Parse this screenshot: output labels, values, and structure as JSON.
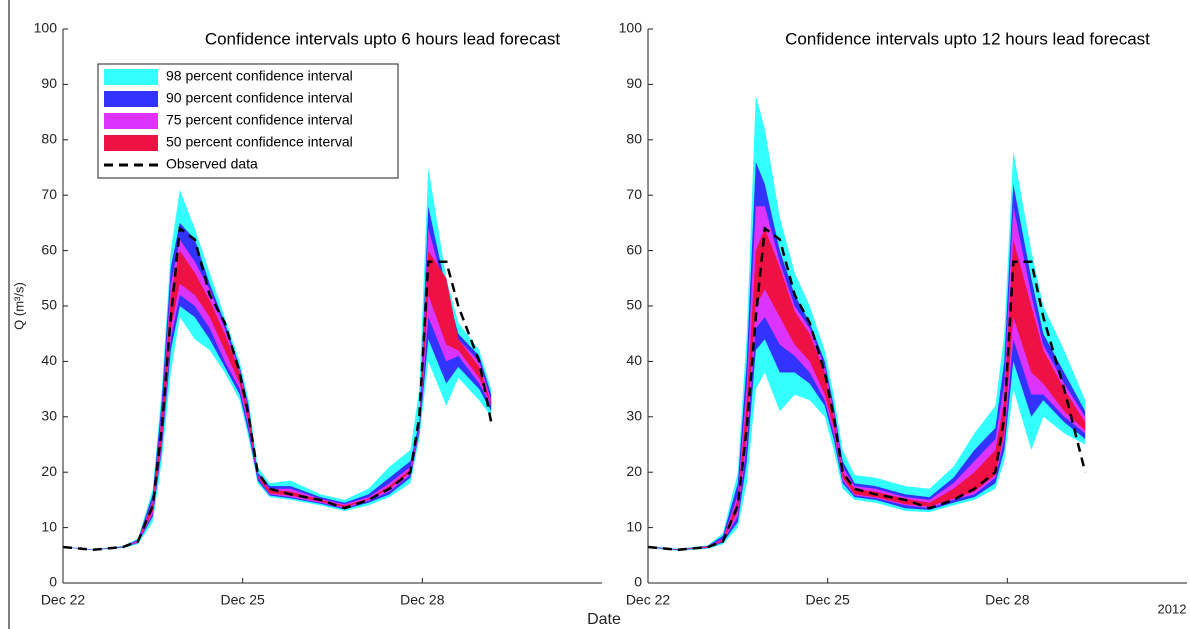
{
  "xlabel": "Date",
  "chart_data": [
    {
      "type": "band",
      "title": "Confidence intervals upto 6 hours lead forecast",
      "ylabel": "Q (m³/s)",
      "x": [
        0,
        0.5,
        1,
        1.25,
        1.5,
        1.65,
        1.8,
        1.95,
        2.2,
        2.45,
        2.7,
        2.95,
        3.1,
        3.25,
        3.45,
        3.8,
        4.3,
        4.7,
        5.1,
        5.45,
        5.8,
        5.95,
        6.1,
        6.4,
        6.6,
        6.95,
        7.15
      ],
      "xlim": [
        0,
        9
      ],
      "ylim": [
        0,
        100
      ],
      "xticks": [
        {
          "value": 0,
          "label": "Dec 22"
        },
        {
          "value": 3,
          "label": "Dec 25"
        },
        {
          "value": 6,
          "label": "Dec 28"
        }
      ],
      "yticks": [
        0,
        10,
        20,
        30,
        40,
        50,
        60,
        70,
        80,
        90,
        100
      ],
      "legend": "upper-left",
      "bands": [
        {
          "name": "98 percent confidence interval",
          "color": "#33ffff",
          "upper": [
            6.6,
            6.1,
            6.7,
            8,
            17,
            35,
            60,
            71,
            64,
            56,
            48,
            40,
            33,
            21,
            18,
            18.5,
            16,
            15,
            17,
            21,
            24,
            35,
            75,
            55,
            47,
            42,
            35
          ],
          "lower": [
            6.4,
            5.9,
            6.3,
            7,
            11,
            22,
            38,
            48,
            44,
            42,
            38,
            33,
            26,
            18,
            15.5,
            15,
            14,
            13,
            14,
            15.5,
            18,
            26,
            40,
            32,
            37,
            33,
            30
          ]
        },
        {
          "name": "90 percent confidence interval",
          "color": "#3333ff",
          "upper": [
            6.55,
            6.05,
            6.6,
            7.8,
            16,
            33,
            57,
            65,
            62,
            54,
            47,
            39,
            32,
            20,
            17.5,
            17.5,
            15.5,
            14.5,
            16,
            19,
            22,
            29,
            68,
            53,
            45,
            41,
            34
          ],
          "lower": [
            6.45,
            5.95,
            6.4,
            7.2,
            12,
            24,
            42,
            50,
            48,
            44,
            39,
            34,
            27,
            18.5,
            15.8,
            15.3,
            14.3,
            13.3,
            14.5,
            16,
            19,
            27,
            44,
            36,
            39,
            35,
            31
          ]
        },
        {
          "name": "75 percent confidence interval",
          "color": "#dd33ff",
          "upper": [
            6.52,
            6.02,
            6.55,
            7.6,
            15,
            31,
            54,
            62,
            58,
            53,
            46,
            38.5,
            31,
            19.5,
            17,
            17,
            15.2,
            14.2,
            15.5,
            18,
            21,
            28,
            64,
            52,
            44,
            40,
            33
          ],
          "lower": [
            6.48,
            5.98,
            6.45,
            7.3,
            12.5,
            25,
            44,
            52,
            50,
            46,
            40,
            35,
            28,
            19,
            16,
            15.5,
            14.5,
            13.5,
            14.8,
            16.5,
            19.5,
            27.5,
            48,
            40,
            41,
            36,
            32
          ]
        },
        {
          "name": "50 percent confidence interval",
          "color": "#ee1144",
          "upper": [
            6.51,
            6.01,
            6.52,
            7.5,
            14.5,
            30,
            52,
            60,
            56,
            51,
            45,
            38,
            30.5,
            19.3,
            16.8,
            16.5,
            15,
            14,
            15.2,
            17.5,
            20.5,
            27.8,
            60,
            55,
            44,
            39,
            32.5
          ],
          "lower": [
            6.49,
            5.99,
            6.48,
            7.4,
            13,
            26,
            46,
            54,
            52,
            48,
            42,
            36,
            29,
            19.1,
            16.2,
            15.8,
            14.7,
            13.7,
            15,
            17,
            20,
            27.6,
            52,
            43,
            42,
            37,
            32.2
          ]
        }
      ],
      "series": [
        {
          "name": "Observed data",
          "color": "#000000",
          "values": [
            6.5,
            6,
            6.5,
            7.5,
            14,
            28,
            48,
            64,
            62,
            52,
            47,
            38,
            30,
            20,
            17,
            16,
            15,
            13.5,
            15,
            17,
            20,
            30,
            58,
            58,
            50,
            40,
            29
          ]
        }
      ]
    },
    {
      "type": "band",
      "title": "Confidence intervals upto 12 hours lead forecast",
      "annotation": "2012",
      "x": [
        0,
        0.5,
        1,
        1.25,
        1.5,
        1.65,
        1.8,
        1.95,
        2.2,
        2.45,
        2.7,
        2.95,
        3.1,
        3.25,
        3.45,
        3.8,
        4.3,
        4.7,
        5.1,
        5.45,
        5.8,
        5.95,
        6.1,
        6.4,
        6.6,
        6.95,
        7.3
      ],
      "xlim": [
        0,
        9
      ],
      "ylim": [
        0,
        100
      ],
      "xticks": [
        {
          "value": 0,
          "label": "Dec 22"
        },
        {
          "value": 3,
          "label": "Dec 25"
        },
        {
          "value": 6,
          "label": "Dec 28"
        }
      ],
      "yticks": [
        0,
        10,
        20,
        30,
        40,
        50,
        60,
        70,
        80,
        90,
        100
      ],
      "bands": [
        {
          "color": "#33ffff",
          "upper": [
            6.7,
            6.2,
            6.8,
            9,
            20,
            45,
            88,
            82,
            66,
            56,
            50,
            42,
            34,
            24,
            19.5,
            19,
            17.5,
            17,
            21,
            27,
            32,
            45,
            78,
            60,
            50,
            42,
            33
          ],
          "lower": [
            6.3,
            5.8,
            6.2,
            7,
            10,
            18,
            35,
            38,
            31,
            34,
            33,
            30,
            24,
            17,
            15,
            14.5,
            13,
            12.8,
            14,
            15,
            17,
            22,
            35,
            24,
            30,
            27,
            25
          ]
        },
        {
          "color": "#3333ff",
          "upper": [
            6.6,
            6.1,
            6.7,
            8.5,
            18,
            40,
            76,
            72,
            60,
            52,
            47,
            40,
            32,
            22,
            18,
            17.5,
            16,
            15.5,
            19,
            24,
            28,
            40,
            72,
            55,
            45,
            38,
            31
          ],
          "lower": [
            6.4,
            5.9,
            6.3,
            7.3,
            11,
            22,
            42,
            44,
            38,
            38,
            36,
            32,
            26,
            18,
            15.5,
            15,
            13.5,
            13.2,
            14.5,
            15.5,
            18,
            24,
            40,
            30,
            33,
            29,
            26
          ]
        },
        {
          "color": "#dd33ff",
          "upper": [
            6.55,
            6.05,
            6.65,
            8,
            16,
            36,
            68,
            68,
            58,
            50,
            46,
            39,
            31,
            21,
            17.5,
            17,
            15.5,
            15,
            18,
            22,
            26,
            36,
            68,
            52,
            43,
            36,
            30
          ],
          "lower": [
            6.45,
            5.95,
            6.35,
            7.5,
            12,
            25,
            46,
            48,
            43,
            41,
            38,
            33,
            27,
            18.5,
            15.8,
            15.3,
            14,
            13.5,
            15,
            16,
            19,
            26,
            44,
            34,
            34,
            30,
            27
          ]
        },
        {
          "color": "#ee1144",
          "upper": [
            6.52,
            6.02,
            6.6,
            7.8,
            15,
            33,
            60,
            64,
            57,
            49,
            45,
            38,
            30,
            20,
            17,
            16.5,
            15.2,
            14.5,
            17,
            20,
            24,
            33,
            62,
            50,
            42,
            35,
            29
          ],
          "lower": [
            6.48,
            5.98,
            6.4,
            7.6,
            13,
            27,
            50,
            53,
            48,
            43,
            40,
            34,
            28,
            19,
            16,
            15.5,
            14.2,
            13.8,
            15.2,
            16.5,
            19.5,
            27,
            48,
            38,
            36,
            31,
            27.5
          ]
        }
      ],
      "series": [
        {
          "color": "#000000",
          "values": [
            6.5,
            6,
            6.5,
            7.5,
            14,
            28,
            48,
            64,
            62,
            52,
            47,
            38,
            30,
            20,
            17,
            16,
            15,
            13.5,
            15,
            17,
            20,
            30,
            58,
            58,
            48,
            35,
            20
          ]
        }
      ]
    }
  ]
}
